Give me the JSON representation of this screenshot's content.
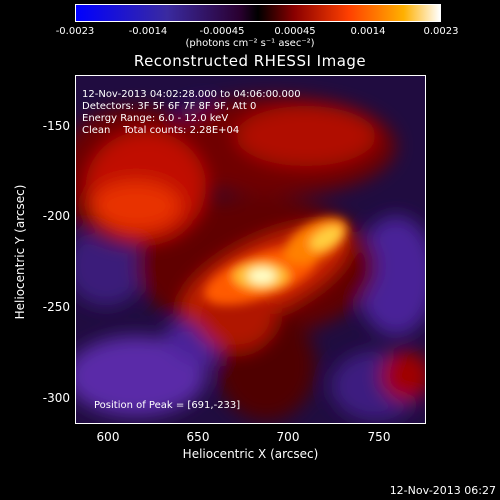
{
  "colorbar": {
    "ticks": [
      "-0.0023",
      "-0.0014",
      "-0.00045",
      "0.00045",
      "0.0014",
      "0.0023"
    ],
    "units": "(photons cm⁻² s⁻¹ asec⁻²)"
  },
  "title": "Reconstructed RHESSI Image",
  "annotations": {
    "time_range": "12-Nov-2013 04:02:28.000 to 04:06:00.000",
    "detectors": "Detectors: 3F 5F 6F 7F 8F 9F, Att 0",
    "energy": "Energy Range: 6.0 - 12.0 keV",
    "clean": "Clean    Total counts: 2.28E+04",
    "peak": "Position of Peak = [691,-233]"
  },
  "axes": {
    "xlabel": "Heliocentric X (arcsec)",
    "ylabel": "Heliocentric Y (arcsec)",
    "xticks": [
      "600",
      "650",
      "700",
      "750"
    ],
    "yticks": [
      "-150",
      "-200",
      "-250",
      "-300"
    ]
  },
  "footer": "12-Nov-2013 06:27",
  "colors": {
    "neg": "#3b1a8a",
    "low": "#5a0000",
    "mid": "#e8400a",
    "high": "#ffe040",
    "peak": "#ffffff"
  }
}
